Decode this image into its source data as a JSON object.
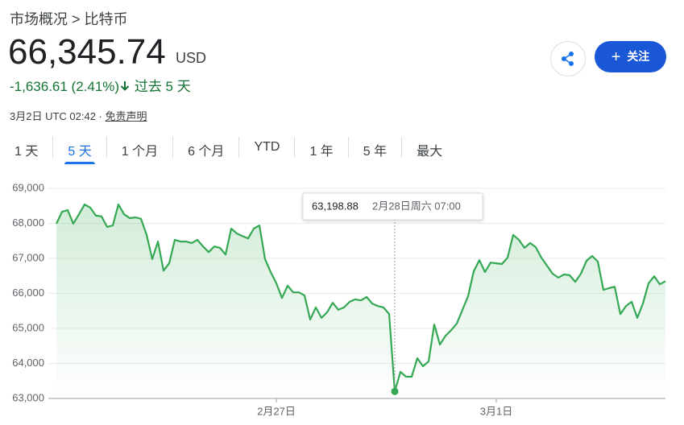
{
  "header": {
    "breadcrumb": [
      "市场概况",
      ">",
      "比特币"
    ],
    "price": "66,345.74",
    "currency": "USD",
    "change": "-1,636.61 (2.41%)",
    "change_period": "过去 5 天",
    "timestamp": "3月2日 UTC 02:42 ·",
    "disclaimer": "免责声明",
    "follow": "关注"
  },
  "tabs": {
    "items": [
      "1 天",
      "5 天",
      "1 个月",
      "6 个月",
      "YTD",
      "1 年",
      "5 年",
      "最大"
    ],
    "selected": "5 天"
  },
  "chart_data": {
    "type": "line",
    "color": "#34a853",
    "categories": [
      null,
      null,
      null,
      null,
      null,
      null,
      null,
      null,
      null,
      null,
      null,
      null,
      null,
      null,
      null,
      null,
      null,
      null,
      null,
      null,
      null,
      null,
      null,
      null,
      null,
      null,
      null,
      null,
      null,
      null,
      null,
      null,
      null,
      null,
      null,
      null,
      null,
      null,
      null,
      "2月27日",
      null,
      null,
      null,
      null,
      null,
      null,
      null,
      null,
      null,
      null,
      null,
      null,
      null,
      null,
      null,
      null,
      null,
      null,
      null,
      null,
      null,
      null,
      null,
      null,
      null,
      null,
      null,
      null,
      null,
      null,
      null,
      null,
      null,
      null,
      null,
      null,
      null,
      null,
      "3月1日",
      null,
      null,
      null,
      null,
      null,
      null,
      null,
      null,
      null,
      null,
      null,
      null,
      null,
      null,
      null,
      null,
      null,
      null,
      null,
      null,
      null,
      null,
      null,
      null,
      null,
      null,
      null,
      null,
      null,
      null
    ],
    "values": [
      67990,
      68330,
      68380,
      67990,
      68260,
      68540,
      68450,
      68220,
      68200,
      67900,
      67940,
      68540,
      68260,
      68150,
      68170,
      68130,
      67670,
      66980,
      67480,
      66650,
      66860,
      67530,
      67480,
      67480,
      67440,
      67530,
      67340,
      67180,
      67340,
      67300,
      67110,
      67850,
      67710,
      67640,
      67570,
      67850,
      67940,
      66980,
      66610,
      66290,
      65870,
      66220,
      66030,
      66030,
      65940,
      65250,
      65600,
      65300,
      65460,
      65730,
      65530,
      65600,
      65760,
      65830,
      65800,
      65900,
      65710,
      65640,
      65600,
      65410,
      63198.88,
      63760,
      63620,
      63620,
      64150,
      63920,
      64060,
      65110,
      64540,
      64790,
      64950,
      65140,
      65530,
      65920,
      66630,
      66950,
      66610,
      66880,
      66860,
      66840,
      67020,
      67670,
      67530,
      67300,
      67440,
      67320,
      67020,
      66790,
      66560,
      66450,
      66540,
      66520,
      66330,
      66560,
      66930,
      67070,
      66910,
      66100,
      66150,
      66190,
      65410,
      65640,
      65760,
      65300,
      65710,
      66290,
      66490,
      66260,
      66350
    ],
    "ylim": [
      63000,
      69000
    ],
    "yticks": [
      {
        "value": 63000,
        "label": "63,000"
      },
      {
        "value": 64000,
        "label": "64,000"
      },
      {
        "value": 65000,
        "label": "65,000"
      },
      {
        "value": 66000,
        "label": "66,000"
      },
      {
        "value": 67000,
        "label": "67,000"
      },
      {
        "value": 68000,
        "label": "68,000"
      },
      {
        "value": 69000,
        "label": "69,000"
      }
    ],
    "grid": true,
    "tooltip": {
      "value": 63198.88,
      "value_label": "63,198.88",
      "time": "2月28日周六 07:00"
    }
  }
}
